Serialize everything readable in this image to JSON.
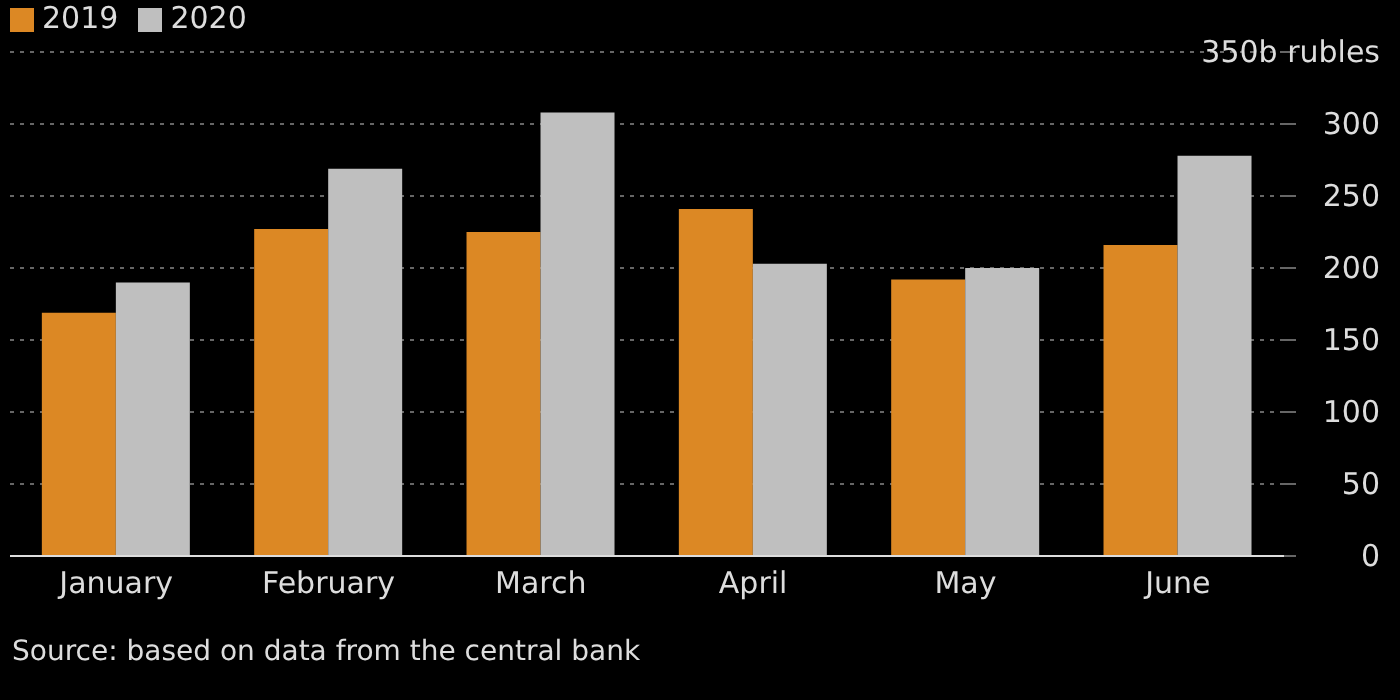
{
  "chart_data": {
    "type": "bar",
    "categories": [
      "January",
      "February",
      "March",
      "April",
      "May",
      "June"
    ],
    "series": [
      {
        "name": "2019",
        "color": "#dc8824",
        "values": [
          169,
          227,
          225,
          241,
          192,
          216
        ]
      },
      {
        "name": "2020",
        "color": "#bfbfbf",
        "values": [
          190,
          269,
          308,
          203,
          200,
          278
        ]
      }
    ],
    "ylim": [
      0,
      350
    ],
    "yticks": [
      0,
      50,
      100,
      150,
      200,
      250,
      300,
      {
        "value": 350,
        "label": "350b rubles"
      }
    ],
    "grid": "y",
    "legend": "top left",
    "annotations": [
      "Source: based on data from the central bank"
    ]
  }
}
